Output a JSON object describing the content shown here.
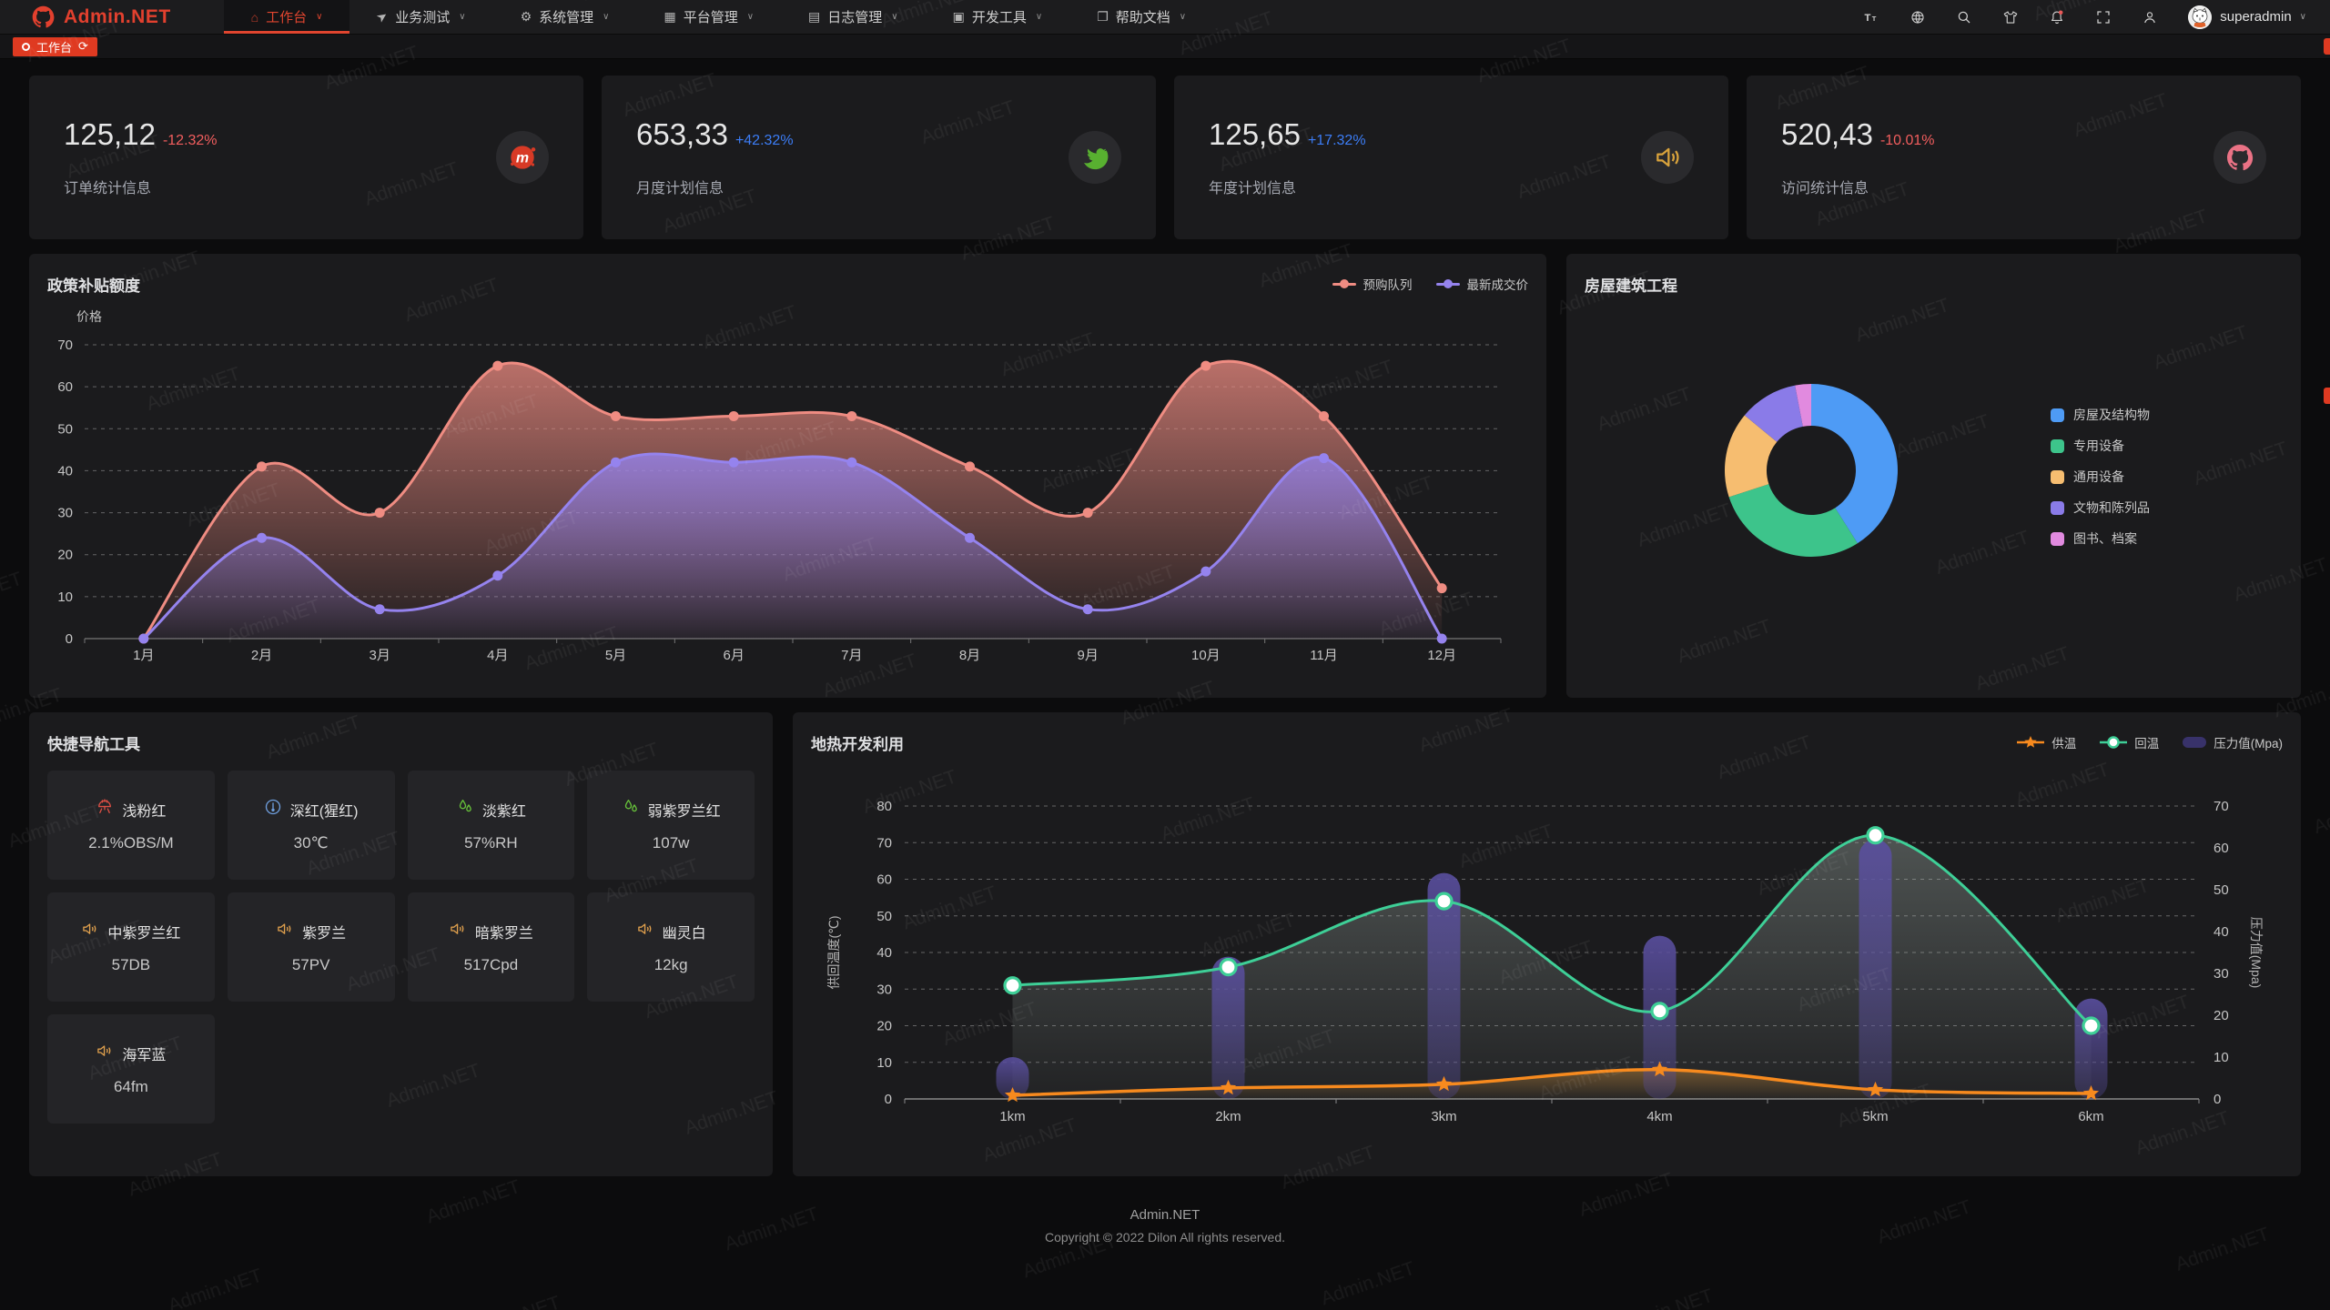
{
  "navbar": {
    "brand": "Admin.NET",
    "menu": [
      {
        "label": "工作台",
        "icon": "home-icon",
        "active": true
      },
      {
        "label": "业务测试",
        "icon": "send-icon"
      },
      {
        "label": "系统管理",
        "icon": "gear-icon"
      },
      {
        "label": "平台管理",
        "icon": "grid-icon"
      },
      {
        "label": "日志管理",
        "icon": "log-icon"
      },
      {
        "label": "开发工具",
        "icon": "cpu-icon"
      },
      {
        "label": "帮助文档",
        "icon": "book-icon"
      }
    ],
    "actions": [
      {
        "name": "font-size-icon"
      },
      {
        "name": "language-icon"
      },
      {
        "name": "search-icon"
      },
      {
        "name": "theme-icon"
      },
      {
        "name": "bell-icon",
        "badge": true
      },
      {
        "name": "fullscreen-icon"
      },
      {
        "name": "profile-icon"
      }
    ],
    "username": "superadmin"
  },
  "tabbar": {
    "active_tab": "工作台"
  },
  "stats": [
    {
      "value": "125,12",
      "delta": "-12.32%",
      "trend": "down",
      "label": "订单统计信息",
      "icon": "meetup-icon"
    },
    {
      "value": "653,33",
      "delta": "+42.32%",
      "trend": "up",
      "label": "月度计划信息",
      "icon": "bird-icon"
    },
    {
      "value": "125,65",
      "delta": "+17.32%",
      "trend": "up",
      "label": "年度计划信息",
      "icon": "speaker-loud-icon"
    },
    {
      "value": "520,43",
      "delta": "-10.01%",
      "trend": "down",
      "label": "访问统计信息",
      "icon": "octocat-icon"
    }
  ],
  "chart_data": [
    {
      "id": "subsidy",
      "type": "line",
      "title": "政策补贴额度",
      "ylabel": "价格",
      "ylim": [
        0,
        70
      ],
      "grid": true,
      "legend_position": "top-right",
      "categories": [
        "1月",
        "2月",
        "3月",
        "4月",
        "5月",
        "6月",
        "7月",
        "8月",
        "9月",
        "10月",
        "11月",
        "12月"
      ],
      "series": [
        {
          "name": "预购队列",
          "color": "#ef8c82",
          "values": [
            0,
            41,
            30,
            65,
            53,
            53,
            53,
            41,
            30,
            65,
            53,
            12
          ]
        },
        {
          "name": "最新成交价",
          "color": "#9583ee",
          "values": [
            0,
            24,
            7,
            15,
            42,
            42,
            42,
            24,
            7,
            16,
            43,
            0
          ]
        }
      ]
    },
    {
      "id": "building",
      "type": "pie",
      "title": "房屋建筑工程",
      "legend_position": "right",
      "labels": [
        "房屋及结构物",
        "专用设备",
        "通用设备",
        "文物和陈列品",
        "图书、档案"
      ],
      "values": [
        41,
        29,
        16,
        11,
        3
      ],
      "colors": [
        "#4e9bf5",
        "#3dc48b",
        "#f6bd70",
        "#8a7be8",
        "#e18adf"
      ]
    },
    {
      "id": "geothermal",
      "type": "mixed",
      "title": "地热开发利用",
      "categories": [
        "1km",
        "2km",
        "3km",
        "4km",
        "5km",
        "6km"
      ],
      "ylabel_left": "供回温度(℃)",
      "ylabel_right": "压力值(Mpa)",
      "ylim_left": [
        0,
        80
      ],
      "ylim_right": [
        0,
        70
      ],
      "grid": true,
      "legend_position": "top-right",
      "series": [
        {
          "name": "供温",
          "type": "line",
          "axis": "left",
          "marker": "star",
          "color": "#f78a1e",
          "values": [
            1,
            3,
            4,
            8,
            2.5,
            1.5
          ]
        },
        {
          "name": "回温",
          "type": "line",
          "axis": "left",
          "marker": "circle",
          "color": "#3ecf97",
          "values": [
            31,
            36,
            54,
            24,
            72,
            20
          ]
        },
        {
          "name": "压力值(Mpa)",
          "type": "bar",
          "axis": "right",
          "color": "#38326a",
          "values": [
            10,
            34,
            54,
            39,
            62,
            24
          ]
        }
      ]
    }
  ],
  "quick_nav": {
    "title": "快捷导航工具",
    "items": [
      {
        "label": "浅粉红",
        "value": "2.1%OBS/M",
        "icon": "grill-icon",
        "icon_color": "#dd4f44"
      },
      {
        "label": "深红(猩红)",
        "value": "30℃",
        "icon": "thermometer-icon",
        "icon_color": "#6f9fde"
      },
      {
        "label": "淡紫红",
        "value": "57%RH",
        "icon": "droplets-icon",
        "icon_color": "#67c23a"
      },
      {
        "label": "弱紫罗兰红",
        "value": "107w",
        "icon": "droplets-icon",
        "icon_color": "#67c23a"
      },
      {
        "label": "中紫罗兰红",
        "value": "57DB",
        "icon": "speaker-icon",
        "icon_color": "#e0a04d"
      },
      {
        "label": "紫罗兰",
        "value": "57PV",
        "icon": "speaker-icon",
        "icon_color": "#e0a04d"
      },
      {
        "label": "暗紫罗兰",
        "value": "517Cpd",
        "icon": "speaker-icon",
        "icon_color": "#e0a04d"
      },
      {
        "label": "幽灵白",
        "value": "12kg",
        "icon": "speaker-icon",
        "icon_color": "#e0a04d"
      },
      {
        "label": "海军蓝",
        "value": "64fm",
        "icon": "speaker-icon",
        "icon_color": "#e0a04d"
      }
    ]
  },
  "footer": {
    "line1": "Admin.NET",
    "line2": "Copyright © 2022 Dilon All rights reserved."
  },
  "watermark": "Admin.NET",
  "colors": {
    "accent": "#df3a21",
    "up": "#3c7df6",
    "down": "#f25e5e",
    "axis_text": "#c5c5c5",
    "grid_line": "rgba(255,255,255,0.32)"
  }
}
